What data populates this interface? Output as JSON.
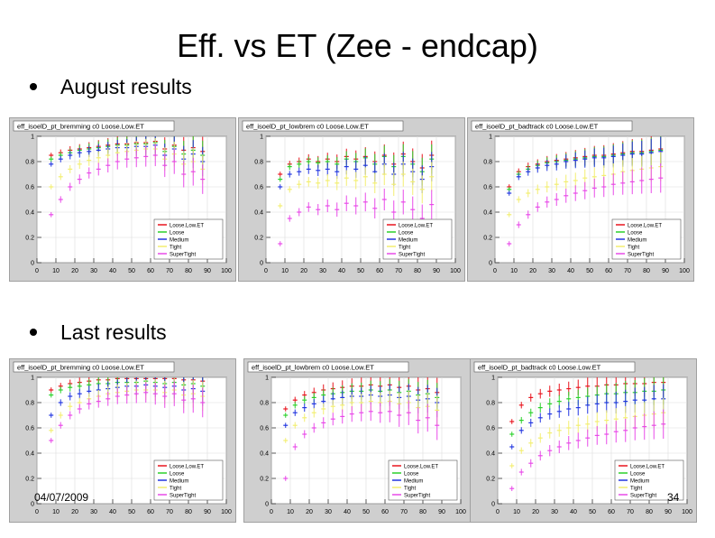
{
  "slide": {
    "title": "Eff. vs ET (Zee - endcap)",
    "bullets": [
      "August results",
      "Last results"
    ],
    "date": "04/07/2009",
    "page_number": "34"
  },
  "colors": {
    "Loose.Low.ET": "#e8141e",
    "Loose": "#2ad12a",
    "Medium": "#2236e0",
    "Tight": "#f2ee70",
    "SuperTight": "#e84ae8"
  },
  "chart_data": [
    {
      "type": "scatter",
      "section": "August results",
      "title": "eff_isoelD_pt_bremming c0 Loose.Low.ET",
      "xlim": [
        0,
        100
      ],
      "ylim": [
        0,
        1
      ],
      "xticks": [
        0,
        10,
        20,
        30,
        40,
        50,
        60,
        70,
        80,
        90,
        100
      ],
      "yticks": [
        "0",
        "0.2",
        "0.4",
        "0.6",
        "0.8",
        "1"
      ],
      "x": [
        7.5,
        12.5,
        17.5,
        22.5,
        27.5,
        32.5,
        37.5,
        42.5,
        47.5,
        52.5,
        57.5,
        62.5,
        67.5,
        72.5,
        77.5,
        82.5,
        87.5
      ],
      "legend": [
        "Loose.Low.ET",
        "Loose",
        "Medium",
        "Tight",
        "SuperTight"
      ],
      "series": [
        {
          "name": "Loose.Low.ET",
          "values": [
            0.85,
            0.87,
            0.89,
            0.9,
            0.91,
            0.92,
            0.93,
            0.94,
            0.94,
            0.95,
            0.95,
            0.96,
            0.9,
            0.93,
            0.89,
            0.91,
            0.88
          ]
        },
        {
          "name": "Loose",
          "values": [
            0.82,
            0.85,
            0.87,
            0.89,
            0.9,
            0.91,
            0.92,
            0.93,
            0.93,
            0.94,
            0.94,
            0.95,
            0.88,
            0.92,
            0.86,
            0.89,
            0.85
          ]
        },
        {
          "name": "Medium",
          "values": [
            0.78,
            0.82,
            0.85,
            0.87,
            0.88,
            0.89,
            0.9,
            0.91,
            0.91,
            0.92,
            0.92,
            0.93,
            0.85,
            0.9,
            0.82,
            0.86,
            0.8
          ]
        },
        {
          "name": "Tight",
          "values": [
            0.6,
            0.68,
            0.74,
            0.78,
            0.81,
            0.83,
            0.85,
            0.87,
            0.88,
            0.89,
            0.9,
            0.9,
            0.82,
            0.86,
            0.78,
            0.8,
            0.74
          ]
        },
        {
          "name": "SuperTight",
          "values": [
            0.38,
            0.5,
            0.6,
            0.66,
            0.71,
            0.74,
            0.77,
            0.8,
            0.82,
            0.83,
            0.84,
            0.85,
            0.77,
            0.8,
            0.7,
            0.72,
            0.66
          ]
        }
      ]
    },
    {
      "type": "scatter",
      "section": "August results",
      "title": "eff_isoelD_pt_lowbrem c0 Loose.Low.ET",
      "xlim": [
        0,
        100
      ],
      "ylim": [
        0,
        1
      ],
      "xticks": [
        0,
        10,
        20,
        30,
        40,
        50,
        60,
        70,
        80,
        90,
        100
      ],
      "yticks": [
        "0",
        "0.2",
        "0.4",
        "0.6",
        "0.8",
        "1"
      ],
      "x": [
        7.5,
        12.5,
        17.5,
        22.5,
        27.5,
        32.5,
        37.5,
        42.5,
        47.5,
        52.5,
        57.5,
        62.5,
        67.5,
        72.5,
        77.5,
        82.5,
        87.5
      ],
      "legend": [
        "Loose.Low.ET",
        "Loose",
        "Medium",
        "Tight",
        "SuperTight"
      ],
      "series": [
        {
          "name": "Loose.Low.ET",
          "values": [
            0.7,
            0.78,
            0.8,
            0.82,
            0.8,
            0.82,
            0.8,
            0.84,
            0.82,
            0.84,
            0.8,
            0.85,
            0.78,
            0.86,
            0.8,
            0.75,
            0.85
          ]
        },
        {
          "name": "Loose",
          "values": [
            0.66,
            0.76,
            0.78,
            0.8,
            0.79,
            0.8,
            0.78,
            0.82,
            0.8,
            0.83,
            0.78,
            0.84,
            0.76,
            0.84,
            0.78,
            0.72,
            0.82
          ]
        },
        {
          "name": "Medium",
          "values": [
            0.6,
            0.7,
            0.72,
            0.74,
            0.73,
            0.74,
            0.72,
            0.76,
            0.74,
            0.77,
            0.72,
            0.78,
            0.7,
            0.78,
            0.72,
            0.66,
            0.76
          ]
        },
        {
          "name": "Tight",
          "values": [
            0.45,
            0.58,
            0.62,
            0.64,
            0.63,
            0.65,
            0.63,
            0.67,
            0.65,
            0.68,
            0.63,
            0.7,
            0.62,
            0.7,
            0.64,
            0.58,
            0.68
          ]
        },
        {
          "name": "SuperTight",
          "values": [
            0.15,
            0.35,
            0.4,
            0.44,
            0.42,
            0.45,
            0.42,
            0.47,
            0.45,
            0.48,
            0.43,
            0.5,
            0.4,
            0.48,
            0.42,
            0.35,
            0.46
          ]
        }
      ]
    },
    {
      "type": "scatter",
      "section": "August results",
      "title": "eff_isoelD_pt_badtrack c0 Loose.Low.ET",
      "xlim": [
        0,
        100
      ],
      "ylim": [
        0,
        1
      ],
      "xticks": [
        0,
        10,
        20,
        30,
        40,
        50,
        60,
        70,
        80,
        90,
        100
      ],
      "yticks": [
        "0",
        "0.2",
        "0.4",
        "0.6",
        "0.8",
        "1"
      ],
      "x": [
        7.5,
        12.5,
        17.5,
        22.5,
        27.5,
        32.5,
        37.5,
        42.5,
        47.5,
        52.5,
        57.5,
        62.5,
        67.5,
        72.5,
        77.5,
        82.5,
        87.5
      ],
      "legend": [
        "Loose.Low.ET",
        "Loose",
        "Medium",
        "Tight",
        "SuperTight"
      ],
      "series": [
        {
          "name": "Loose.Low.ET",
          "values": [
            0.6,
            0.72,
            0.76,
            0.78,
            0.8,
            0.81,
            0.82,
            0.83,
            0.84,
            0.85,
            0.85,
            0.86,
            0.87,
            0.88,
            0.88,
            0.89,
            0.9
          ]
        },
        {
          "name": "Loose",
          "values": [
            0.58,
            0.7,
            0.74,
            0.77,
            0.79,
            0.8,
            0.81,
            0.82,
            0.83,
            0.84,
            0.84,
            0.85,
            0.86,
            0.87,
            0.87,
            0.88,
            0.89
          ]
        },
        {
          "name": "Medium",
          "values": [
            0.55,
            0.68,
            0.72,
            0.75,
            0.77,
            0.78,
            0.8,
            0.81,
            0.82,
            0.83,
            0.83,
            0.84,
            0.85,
            0.86,
            0.86,
            0.87,
            0.88
          ]
        },
        {
          "name": "Tight",
          "values": [
            0.38,
            0.5,
            0.55,
            0.58,
            0.6,
            0.62,
            0.64,
            0.65,
            0.67,
            0.68,
            0.69,
            0.7,
            0.72,
            0.73,
            0.74,
            0.75,
            0.76
          ]
        },
        {
          "name": "SuperTight",
          "values": [
            0.15,
            0.3,
            0.38,
            0.44,
            0.48,
            0.5,
            0.53,
            0.55,
            0.57,
            0.59,
            0.6,
            0.62,
            0.63,
            0.64,
            0.65,
            0.66,
            0.67
          ]
        }
      ]
    },
    {
      "type": "scatter",
      "section": "Last results",
      "title": "eff_isoelD_pt_bremming c0 Loose.Low.ET",
      "xlim": [
        0,
        100
      ],
      "ylim": [
        0,
        1
      ],
      "xticks": [
        0,
        10,
        20,
        30,
        40,
        50,
        60,
        70,
        80,
        90,
        100
      ],
      "yticks": [
        "0",
        "0.2",
        "0.4",
        "0.6",
        "0.8",
        "1"
      ],
      "x": [
        7.5,
        12.5,
        17.5,
        22.5,
        27.5,
        32.5,
        37.5,
        42.5,
        47.5,
        52.5,
        57.5,
        62.5,
        67.5,
        72.5,
        77.5,
        82.5,
        87.5
      ],
      "legend": [
        "Loose.Low.ET",
        "Loose",
        "Medium",
        "Tight",
        "SuperTight"
      ],
      "series": [
        {
          "name": "Loose.Low.ET",
          "values": [
            0.9,
            0.93,
            0.95,
            0.96,
            0.97,
            0.98,
            0.98,
            0.99,
            0.99,
            0.99,
            0.99,
            0.99,
            0.99,
            0.99,
            0.98,
            0.98,
            0.97
          ]
        },
        {
          "name": "Loose",
          "values": [
            0.86,
            0.9,
            0.92,
            0.93,
            0.94,
            0.95,
            0.95,
            0.96,
            0.96,
            0.96,
            0.97,
            0.96,
            0.95,
            0.96,
            0.94,
            0.95,
            0.93
          ]
        },
        {
          "name": "Medium",
          "values": [
            0.7,
            0.8,
            0.85,
            0.87,
            0.89,
            0.9,
            0.91,
            0.92,
            0.93,
            0.93,
            0.94,
            0.93,
            0.92,
            0.93,
            0.9,
            0.91,
            0.89
          ]
        },
        {
          "name": "Tight",
          "values": [
            0.58,
            0.7,
            0.77,
            0.8,
            0.83,
            0.85,
            0.87,
            0.88,
            0.89,
            0.9,
            0.9,
            0.9,
            0.88,
            0.9,
            0.86,
            0.87,
            0.85
          ]
        },
        {
          "name": "SuperTight",
          "values": [
            0.5,
            0.62,
            0.7,
            0.75,
            0.79,
            0.81,
            0.83,
            0.85,
            0.86,
            0.87,
            0.88,
            0.87,
            0.85,
            0.87,
            0.82,
            0.83,
            0.8
          ]
        }
      ]
    },
    {
      "type": "scatter",
      "section": "Last results",
      "title": "eff_isoelD_pt_lowbrem c0 Loose.Low.ET",
      "xlim": [
        0,
        100
      ],
      "ylim": [
        0,
        1
      ],
      "xticks": [
        0,
        10,
        20,
        30,
        40,
        50,
        60,
        70,
        80,
        90,
        100
      ],
      "yticks": [
        "0",
        "0.2",
        "0.4",
        "0.6",
        "0.8",
        "1"
      ],
      "x": [
        7.5,
        12.5,
        17.5,
        22.5,
        27.5,
        32.5,
        37.5,
        42.5,
        47.5,
        52.5,
        57.5,
        62.5,
        67.5,
        72.5,
        77.5,
        82.5,
        87.5
      ],
      "legend": [
        "Loose.Low.ET",
        "Loose",
        "Medium",
        "Tight",
        "SuperTight"
      ],
      "series": [
        {
          "name": "Loose.Low.ET",
          "values": [
            0.75,
            0.82,
            0.86,
            0.88,
            0.9,
            0.91,
            0.92,
            0.93,
            0.93,
            0.94,
            0.93,
            0.94,
            0.92,
            0.93,
            0.9,
            0.91,
            0.88
          ]
        },
        {
          "name": "Loose",
          "values": [
            0.7,
            0.78,
            0.82,
            0.84,
            0.86,
            0.87,
            0.88,
            0.89,
            0.89,
            0.9,
            0.89,
            0.9,
            0.88,
            0.89,
            0.86,
            0.87,
            0.84
          ]
        },
        {
          "name": "Medium",
          "values": [
            0.62,
            0.72,
            0.76,
            0.79,
            0.81,
            0.83,
            0.84,
            0.85,
            0.85,
            0.86,
            0.85,
            0.86,
            0.84,
            0.85,
            0.82,
            0.83,
            0.8
          ]
        },
        {
          "name": "Tight",
          "values": [
            0.5,
            0.62,
            0.68,
            0.72,
            0.75,
            0.77,
            0.78,
            0.8,
            0.8,
            0.81,
            0.8,
            0.81,
            0.79,
            0.8,
            0.76,
            0.77,
            0.74
          ]
        },
        {
          "name": "SuperTight",
          "values": [
            0.2,
            0.45,
            0.55,
            0.6,
            0.64,
            0.67,
            0.69,
            0.71,
            0.72,
            0.73,
            0.72,
            0.73,
            0.7,
            0.72,
            0.66,
            0.68,
            0.62
          ]
        }
      ]
    },
    {
      "type": "scatter",
      "section": "Last results",
      "title": "eff_isoelD_pt_badtrack c0 Loose.Low.ET",
      "xlim": [
        0,
        100
      ],
      "ylim": [
        0,
        1
      ],
      "xticks": [
        0,
        10,
        20,
        30,
        40,
        50,
        60,
        70,
        80,
        90,
        100
      ],
      "yticks": [
        "0",
        "0.2",
        "0.4",
        "0.6",
        "0.8",
        "1"
      ],
      "x": [
        7.5,
        12.5,
        17.5,
        22.5,
        27.5,
        32.5,
        37.5,
        42.5,
        47.5,
        52.5,
        57.5,
        62.5,
        67.5,
        72.5,
        77.5,
        82.5,
        87.5
      ],
      "legend": [
        "Loose.Low.ET",
        "Loose",
        "Medium",
        "Tight",
        "SuperTight"
      ],
      "series": [
        {
          "name": "Loose.Low.ET",
          "values": [
            0.65,
            0.78,
            0.84,
            0.87,
            0.89,
            0.9,
            0.91,
            0.92,
            0.93,
            0.93,
            0.94,
            0.94,
            0.95,
            0.95,
            0.95,
            0.96,
            0.96
          ]
        },
        {
          "name": "Loose",
          "values": [
            0.55,
            0.66,
            0.72,
            0.76,
            0.79,
            0.81,
            0.83,
            0.84,
            0.85,
            0.86,
            0.87,
            0.87,
            0.88,
            0.88,
            0.89,
            0.89,
            0.9
          ]
        },
        {
          "name": "Medium",
          "values": [
            0.45,
            0.58,
            0.64,
            0.68,
            0.71,
            0.73,
            0.75,
            0.76,
            0.78,
            0.79,
            0.8,
            0.8,
            0.81,
            0.82,
            0.82,
            0.83,
            0.83
          ]
        },
        {
          "name": "Tight",
          "values": [
            0.3,
            0.42,
            0.48,
            0.52,
            0.56,
            0.58,
            0.6,
            0.62,
            0.63,
            0.65,
            0.66,
            0.67,
            0.68,
            0.69,
            0.7,
            0.71,
            0.72
          ]
        },
        {
          "name": "SuperTight",
          "values": [
            0.12,
            0.25,
            0.32,
            0.38,
            0.42,
            0.45,
            0.48,
            0.5,
            0.52,
            0.54,
            0.55,
            0.57,
            0.58,
            0.6,
            0.61,
            0.62,
            0.63
          ]
        }
      ]
    }
  ]
}
